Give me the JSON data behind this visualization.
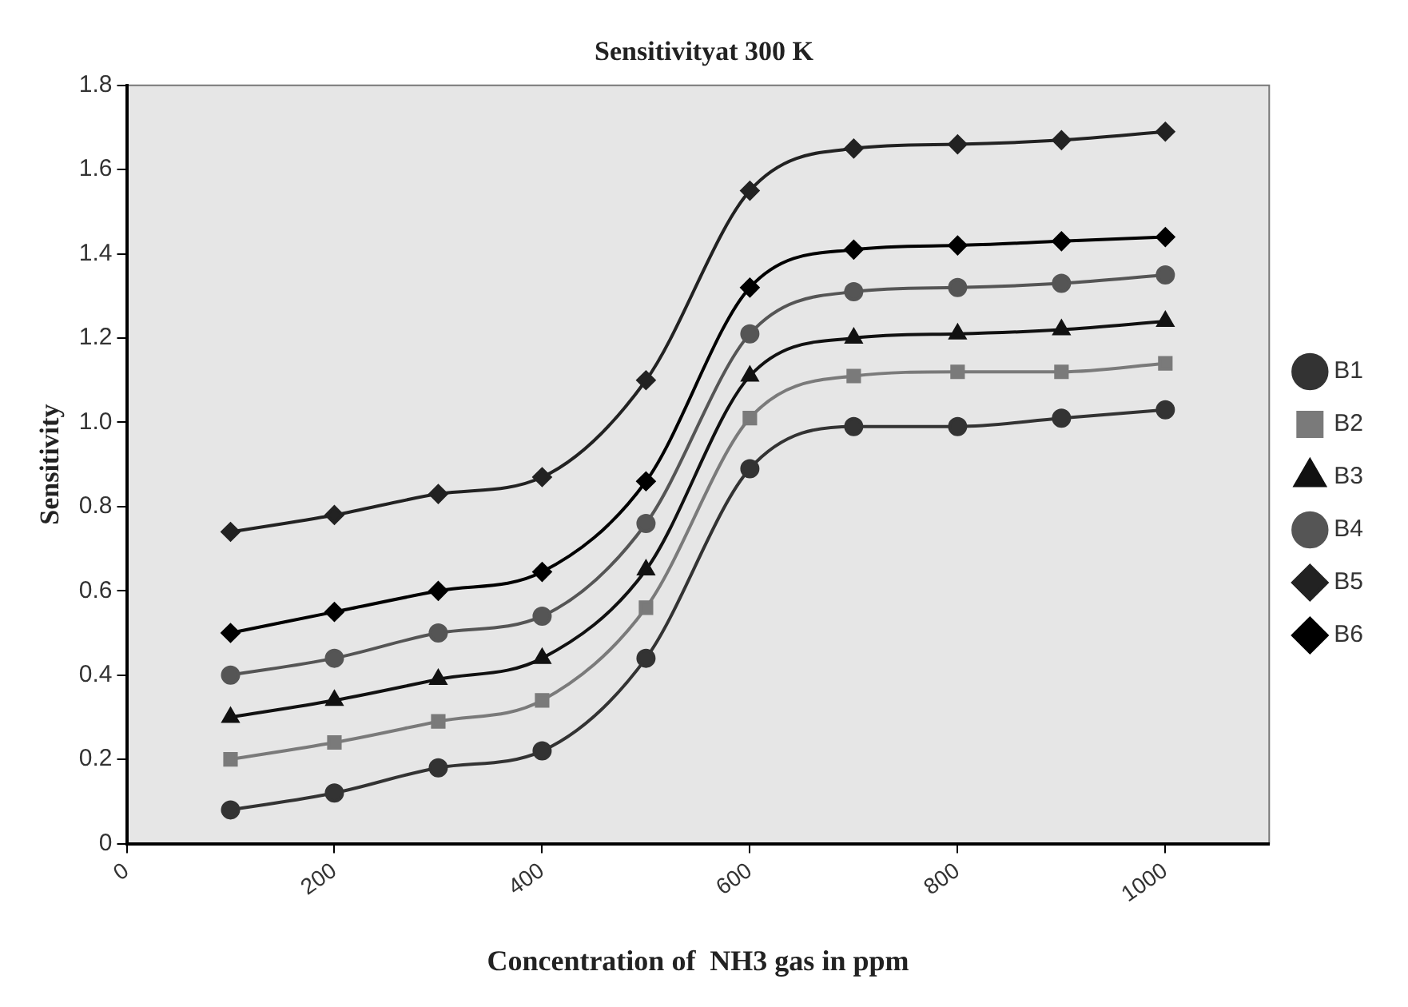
{
  "chart_data": {
    "type": "line",
    "title": "Sensitivityat 300 K",
    "xlabel": "Concentration of  NH3 gas in ppm",
    "ylabel": "Sensitivity",
    "x": [
      100,
      200,
      300,
      400,
      500,
      600,
      700,
      800,
      900,
      1000
    ],
    "xlim": [
      0,
      1100
    ],
    "xticks": [
      0,
      200,
      400,
      600,
      800,
      1000
    ],
    "ylim": [
      0,
      1.8
    ],
    "yticks": [
      0,
      {
        "value": 0.2,
        "label": "0.2"
      },
      {
        "value": 0.4,
        "label": "0.4"
      },
      {
        "value": 0.6,
        "label": "0.6"
      },
      {
        "value": 0.8,
        "label": "0.8"
      },
      {
        "value": 1,
        "label": "1.0"
      },
      {
        "value": 1.2,
        "label": "1.2"
      },
      {
        "value": 1.4,
        "label": "1.4"
      },
      {
        "value": 1.6,
        "label": "1.6"
      },
      {
        "value": 1.8,
        "label": "1.8"
      }
    ],
    "grid": false,
    "legend": "right",
    "series": [
      {
        "name": "B1",
        "color": "#333333",
        "marker": "circle",
        "values": [
          0.08,
          0.12,
          0.18,
          0.22,
          0.44,
          0.89,
          0.99,
          0.99,
          1.01,
          1.03
        ]
      },
      {
        "name": "B2",
        "color": "#7a7a7a",
        "marker": "square",
        "values": [
          0.2,
          0.24,
          0.29,
          0.34,
          0.56,
          1.01,
          1.11,
          1.12,
          1.12,
          1.14
        ]
      },
      {
        "name": "B3",
        "color": "#111111",
        "marker": "triangle",
        "values": [
          0.3,
          0.34,
          0.39,
          0.44,
          0.65,
          1.11,
          1.2,
          1.21,
          1.22,
          1.24
        ]
      },
      {
        "name": "B4",
        "color": "#555555",
        "marker": "circle",
        "values": [
          0.4,
          0.44,
          0.5,
          0.54,
          0.76,
          1.21,
          1.31,
          1.32,
          1.33,
          1.35
        ]
      },
      {
        "name": "B5",
        "color": "#222222",
        "marker": "diamond",
        "values": [
          0.74,
          0.78,
          0.83,
          0.87,
          1.1,
          1.55,
          1.65,
          1.66,
          1.67,
          1.69
        ]
      },
      {
        "name": "B6",
        "color": "#000000",
        "marker": "diamond",
        "values": [
          0.5,
          0.55,
          0.6,
          0.645,
          0.86,
          1.32,
          1.41,
          1.42,
          1.43,
          1.44
        ]
      }
    ]
  }
}
